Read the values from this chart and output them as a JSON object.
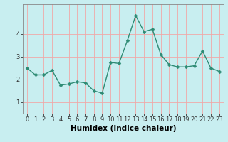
{
  "x": [
    0,
    1,
    2,
    3,
    4,
    5,
    6,
    7,
    8,
    9,
    10,
    11,
    12,
    13,
    14,
    15,
    16,
    17,
    18,
    19,
    20,
    21,
    22,
    23
  ],
  "y": [
    2.5,
    2.2,
    2.2,
    2.4,
    1.75,
    1.8,
    1.9,
    1.85,
    1.5,
    1.4,
    2.75,
    2.7,
    3.7,
    4.8,
    4.1,
    4.2,
    3.1,
    2.65,
    2.55,
    2.55,
    2.6,
    3.25,
    2.5,
    2.35
  ],
  "line_color": "#2e8b74",
  "marker_color": "#2e8b74",
  "bg_color": "#c8eef0",
  "grid_color": "#f0a8a8",
  "xlabel": "Humidex (Indice chaleur)",
  "ylim": [
    0.5,
    5.3
  ],
  "xlim": [
    -0.5,
    23.5
  ],
  "yticks": [
    1,
    2,
    3,
    4
  ],
  "xticks": [
    0,
    1,
    2,
    3,
    4,
    5,
    6,
    7,
    8,
    9,
    10,
    11,
    12,
    13,
    14,
    15,
    16,
    17,
    18,
    19,
    20,
    21,
    22,
    23
  ],
  "tick_fontsize": 6,
  "xlabel_fontsize": 7.5,
  "linewidth": 1.0,
  "markersize": 2.5
}
